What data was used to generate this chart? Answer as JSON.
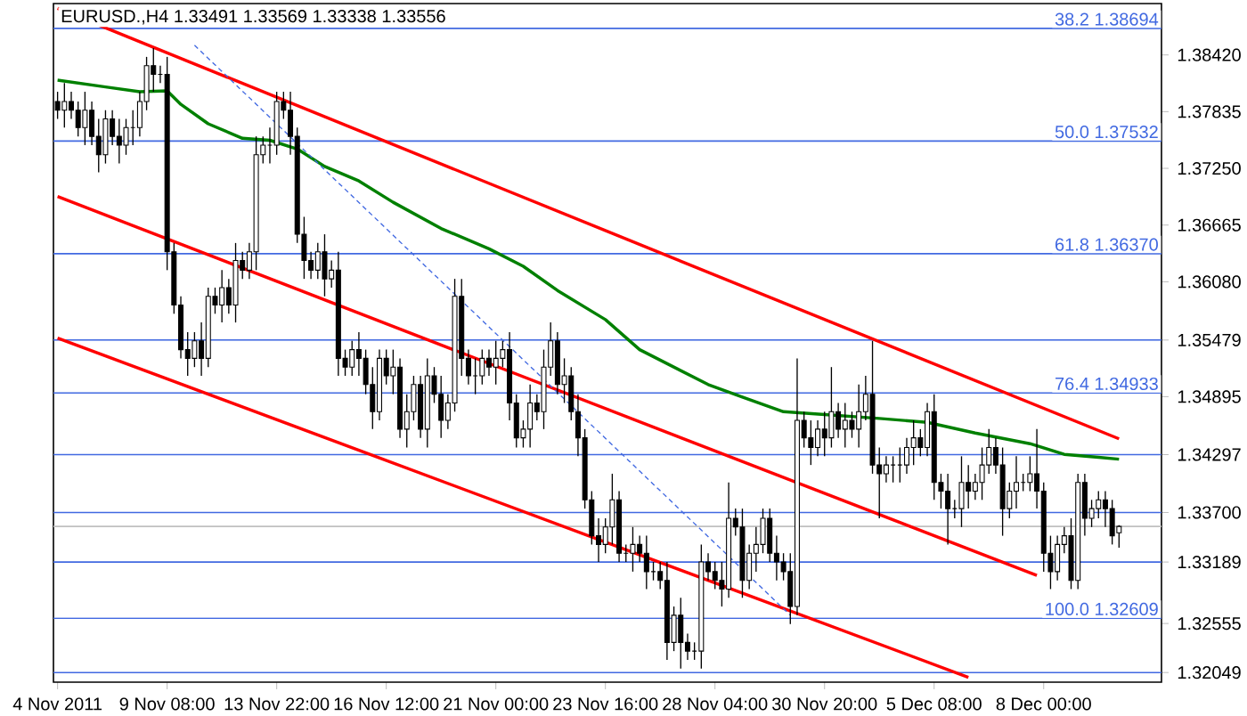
{
  "chart_data": {
    "type": "candlestick",
    "title": "EURUSD.,H4 1.33491 1.33569 1.33338 1.33556",
    "categories": [
      "4 Nov 2011",
      null,
      null,
      null,
      null,
      null,
      null,
      null,
      null,
      null,
      null,
      null,
      null,
      null,
      null,
      null,
      "9 Nov 08:00",
      null,
      null,
      null,
      null,
      null,
      null,
      null,
      null,
      null,
      null,
      null,
      null,
      null,
      null,
      null,
      "13 Nov 22:00",
      null,
      null,
      null,
      null,
      null,
      null,
      null,
      null,
      null,
      null,
      null,
      null,
      null,
      null,
      null,
      "16 Nov 12:00",
      null,
      null,
      null,
      null,
      null,
      null,
      null,
      null,
      null,
      null,
      null,
      null,
      null,
      null,
      null,
      "21 Nov 00:00",
      null,
      null,
      null,
      null,
      null,
      null,
      null,
      null,
      null,
      null,
      null,
      null,
      null,
      null,
      null,
      "23 Nov 16:00",
      null,
      null,
      null,
      null,
      null,
      null,
      null,
      null,
      null,
      null,
      null,
      null,
      null,
      null,
      null,
      "28 Nov 04:00",
      null,
      null,
      null,
      null,
      null,
      null,
      null,
      null,
      null,
      null,
      null,
      null,
      null,
      null,
      null,
      "30 Nov 20:00",
      null,
      null,
      null,
      null,
      null,
      null,
      null,
      null,
      null,
      null,
      null,
      null,
      null,
      null,
      null,
      "5 Dec 08:00",
      null,
      null,
      null,
      null,
      null,
      null,
      null,
      null,
      null,
      null,
      null,
      null,
      null,
      null,
      null,
      "8 Dec 00:00",
      null,
      null,
      null,
      null,
      null,
      null,
      null,
      null,
      null,
      null,
      null
    ],
    "ohlc": [
      [
        1.3794,
        1.3804,
        1.3776,
        1.3785
      ],
      [
        1.3785,
        1.3813,
        1.3767,
        1.3794
      ],
      [
        1.3794,
        1.3804,
        1.3776,
        1.3785
      ],
      [
        1.3785,
        1.3794,
        1.3758,
        1.3767
      ],
      [
        1.3767,
        1.3804,
        1.3749,
        1.3785
      ],
      [
        1.3785,
        1.3794,
        1.3749,
        1.3758
      ],
      [
        1.3758,
        1.3776,
        1.3721,
        1.3739
      ],
      [
        1.3739,
        1.3785,
        1.373,
        1.3776
      ],
      [
        1.3776,
        1.3785,
        1.3749,
        1.3758
      ],
      [
        1.3758,
        1.3776,
        1.373,
        1.3749
      ],
      [
        1.3749,
        1.3776,
        1.3739,
        1.3767
      ],
      [
        1.3767,
        1.3785,
        1.3749,
        1.3767
      ],
      [
        1.3767,
        1.3804,
        1.3758,
        1.3794
      ],
      [
        1.3794,
        1.384,
        1.3785,
        1.3831
      ],
      [
        1.3831,
        1.3849,
        1.3804,
        1.3822
      ],
      [
        1.3822,
        1.3831,
        1.3813,
        1.3822
      ],
      [
        1.3822,
        1.384,
        1.362,
        1.3639
      ],
      [
        1.3639,
        1.3648,
        1.3575,
        1.3584
      ],
      [
        1.3584,
        1.3593,
        1.3529,
        1.3538
      ],
      [
        1.3538,
        1.3556,
        1.3511,
        1.3529
      ],
      [
        1.3529,
        1.3556,
        1.352,
        1.3547
      ],
      [
        1.3547,
        1.3566,
        1.3511,
        1.3529
      ],
      [
        1.3529,
        1.3602,
        1.352,
        1.3593
      ],
      [
        1.3593,
        1.3602,
        1.3575,
        1.3584
      ],
      [
        1.3584,
        1.362,
        1.3566,
        1.3602
      ],
      [
        1.3602,
        1.3611,
        1.3575,
        1.3584
      ],
      [
        1.3584,
        1.3648,
        1.3566,
        1.363
      ],
      [
        1.363,
        1.3639,
        1.3611,
        1.362
      ],
      [
        1.362,
        1.3648,
        1.3611,
        1.3639
      ],
      [
        1.3639,
        1.3758,
        1.362,
        1.3739
      ],
      [
        1.3739,
        1.3758,
        1.373,
        1.3749
      ],
      [
        1.3749,
        1.3767,
        1.373,
        1.3749
      ],
      [
        1.3749,
        1.3804,
        1.3739,
        1.3794
      ],
      [
        1.3794,
        1.3804,
        1.3776,
        1.3785
      ],
      [
        1.3785,
        1.3804,
        1.3739,
        1.3758
      ],
      [
        1.3758,
        1.3767,
        1.3648,
        1.3657
      ],
      [
        1.3657,
        1.3675,
        1.3611,
        1.363
      ],
      [
        1.363,
        1.3639,
        1.3611,
        1.362
      ],
      [
        1.362,
        1.3648,
        1.3611,
        1.3639
      ],
      [
        1.3639,
        1.3657,
        1.3593,
        1.3611
      ],
      [
        1.3611,
        1.363,
        1.3602,
        1.362
      ],
      [
        1.362,
        1.3639,
        1.3511,
        1.3529
      ],
      [
        1.3529,
        1.3538,
        1.3511,
        1.352
      ],
      [
        1.352,
        1.3547,
        1.3511,
        1.3538
      ],
      [
        1.3538,
        1.3556,
        1.3511,
        1.3529
      ],
      [
        1.3529,
        1.3538,
        1.3492,
        1.3502
      ],
      [
        1.3502,
        1.352,
        1.3456,
        1.3474
      ],
      [
        1.3474,
        1.3538,
        1.3465,
        1.3529
      ],
      [
        1.3529,
        1.3538,
        1.3502,
        1.3511
      ],
      [
        1.3511,
        1.3538,
        1.3492,
        1.352
      ],
      [
        1.352,
        1.3529,
        1.3447,
        1.3456
      ],
      [
        1.3456,
        1.3492,
        1.3437,
        1.3474
      ],
      [
        1.3474,
        1.3511,
        1.3465,
        1.3502
      ],
      [
        1.3502,
        1.3511,
        1.3447,
        1.3456
      ],
      [
        1.3456,
        1.3529,
        1.3437,
        1.3511
      ],
      [
        1.3511,
        1.352,
        1.3483,
        1.3492
      ],
      [
        1.3492,
        1.3511,
        1.3447,
        1.3465
      ],
      [
        1.3465,
        1.3492,
        1.3456,
        1.3483
      ],
      [
        1.3483,
        1.3611,
        1.3474,
        1.3593
      ],
      [
        1.3593,
        1.3611,
        1.3511,
        1.3529
      ],
      [
        1.3529,
        1.3538,
        1.3502,
        1.3511
      ],
      [
        1.3511,
        1.3529,
        1.3492,
        1.3511
      ],
      [
        1.3511,
        1.3538,
        1.3502,
        1.3529
      ],
      [
        1.3529,
        1.3538,
        1.3511,
        1.352
      ],
      [
        1.352,
        1.3547,
        1.3502,
        1.3529
      ],
      [
        1.3529,
        1.3547,
        1.352,
        1.3538
      ],
      [
        1.3538,
        1.3556,
        1.3465,
        1.3483
      ],
      [
        1.3483,
        1.3492,
        1.3437,
        1.3447
      ],
      [
        1.3447,
        1.3465,
        1.3437,
        1.3456
      ],
      [
        1.3456,
        1.3502,
        1.3437,
        1.3483
      ],
      [
        1.3483,
        1.3492,
        1.3465,
        1.3474
      ],
      [
        1.3474,
        1.3538,
        1.3456,
        1.352
      ],
      [
        1.352,
        1.3566,
        1.3511,
        1.3547
      ],
      [
        1.3547,
        1.3556,
        1.3492,
        1.3502
      ],
      [
        1.3502,
        1.3529,
        1.3483,
        1.3511
      ],
      [
        1.3511,
        1.352,
        1.3465,
        1.3474
      ],
      [
        1.3474,
        1.3492,
        1.3428,
        1.3447
      ],
      [
        1.3447,
        1.3456,
        1.3374,
        1.3383
      ],
      [
        1.3383,
        1.3392,
        1.3337,
        1.3346
      ],
      [
        1.3346,
        1.3364,
        1.3319,
        1.3337
      ],
      [
        1.3337,
        1.3364,
        1.3328,
        1.3355
      ],
      [
        1.3355,
        1.341,
        1.3337,
        1.3383
      ],
      [
        1.3383,
        1.3392,
        1.3319,
        1.3328
      ],
      [
        1.3328,
        1.3337,
        1.3319,
        1.3328
      ],
      [
        1.3328,
        1.3355,
        1.3309,
        1.3337
      ],
      [
        1.3337,
        1.3346,
        1.3319,
        1.3328
      ],
      [
        1.3328,
        1.3346,
        1.3291,
        1.3309
      ],
      [
        1.3309,
        1.3319,
        1.33,
        1.3309
      ],
      [
        1.3309,
        1.3319,
        1.3291,
        1.33
      ],
      [
        1.33,
        1.3319,
        1.3218,
        1.3236
      ],
      [
        1.3236,
        1.3273,
        1.3227,
        1.3264
      ],
      [
        1.3264,
        1.3282,
        1.3209,
        1.3236
      ],
      [
        1.3236,
        1.3245,
        1.3218,
        1.3227
      ],
      [
        1.3227,
        1.3236,
        1.3218,
        1.3227
      ],
      [
        1.3227,
        1.3337,
        1.3209,
        1.3319
      ],
      [
        1.3319,
        1.3328,
        1.33,
        1.3309
      ],
      [
        1.3309,
        1.3319,
        1.3291,
        1.33
      ],
      [
        1.33,
        1.3319,
        1.3273,
        1.3291
      ],
      [
        1.3291,
        1.3401,
        1.3282,
        1.3364
      ],
      [
        1.3364,
        1.3374,
        1.3346,
        1.3355
      ],
      [
        1.3355,
        1.3374,
        1.3282,
        1.33
      ],
      [
        1.33,
        1.3337,
        1.3291,
        1.3328
      ],
      [
        1.3328,
        1.3355,
        1.3309,
        1.3337
      ],
      [
        1.3337,
        1.3374,
        1.3328,
        1.3364
      ],
      [
        1.3364,
        1.3374,
        1.3319,
        1.3328
      ],
      [
        1.3328,
        1.3346,
        1.33,
        1.3319
      ],
      [
        1.3319,
        1.3328,
        1.33,
        1.3309
      ],
      [
        1.3309,
        1.3328,
        1.3255,
        1.3273
      ],
      [
        1.3273,
        1.3529,
        1.3264,
        1.3465
      ],
      [
        1.3465,
        1.3474,
        1.3437,
        1.3447
      ],
      [
        1.3447,
        1.3465,
        1.3419,
        1.3437
      ],
      [
        1.3437,
        1.3465,
        1.3428,
        1.3456
      ],
      [
        1.3456,
        1.3474,
        1.3428,
        1.3447
      ],
      [
        1.3447,
        1.352,
        1.3437,
        1.3474
      ],
      [
        1.3474,
        1.3483,
        1.3447,
        1.3456
      ],
      [
        1.3456,
        1.3483,
        1.3437,
        1.3465
      ],
      [
        1.3465,
        1.3474,
        1.3447,
        1.3456
      ],
      [
        1.3456,
        1.3502,
        1.3437,
        1.3474
      ],
      [
        1.3474,
        1.3511,
        1.3465,
        1.3492
      ],
      [
        1.3492,
        1.3547,
        1.341,
        1.3419
      ],
      [
        1.3419,
        1.3437,
        1.3364,
        1.341
      ],
      [
        1.341,
        1.3428,
        1.3401,
        1.3419
      ],
      [
        1.3419,
        1.3428,
        1.3401,
        1.3419
      ],
      [
        1.3419,
        1.3437,
        1.3401,
        1.3419
      ],
      [
        1.3419,
        1.3447,
        1.341,
        1.3437
      ],
      [
        1.3437,
        1.3465,
        1.3419,
        1.3447
      ],
      [
        1.3447,
        1.3456,
        1.3428,
        1.3437
      ],
      [
        1.3437,
        1.3483,
        1.3428,
        1.3474
      ],
      [
        1.3474,
        1.3492,
        1.3383,
        1.3401
      ],
      [
        1.3401,
        1.341,
        1.3374,
        1.3392
      ],
      [
        1.3392,
        1.341,
        1.3337,
        1.3374
      ],
      [
        1.3374,
        1.3383,
        1.3364,
        1.3374
      ],
      [
        1.3374,
        1.3428,
        1.3355,
        1.3401
      ],
      [
        1.3401,
        1.3419,
        1.3374,
        1.3392
      ],
      [
        1.3392,
        1.341,
        1.3383,
        1.3401
      ],
      [
        1.3401,
        1.3437,
        1.3383,
        1.3419
      ],
      [
        1.3419,
        1.3456,
        1.341,
        1.3437
      ],
      [
        1.3437,
        1.3447,
        1.341,
        1.3419
      ],
      [
        1.3419,
        1.3437,
        1.3346,
        1.3374
      ],
      [
        1.3374,
        1.3401,
        1.3364,
        1.3392
      ],
      [
        1.3392,
        1.3428,
        1.3374,
        1.3401
      ],
      [
        1.3401,
        1.341,
        1.3392,
        1.3401
      ],
      [
        1.3401,
        1.3428,
        1.3392,
        1.341
      ],
      [
        1.341,
        1.3456,
        1.3374,
        1.3392
      ],
      [
        1.3392,
        1.3401,
        1.3309,
        1.3328
      ],
      [
        1.3328,
        1.3346,
        1.3291,
        1.3309
      ],
      [
        1.3309,
        1.3346,
        1.33,
        1.3337
      ],
      [
        1.3337,
        1.3355,
        1.3328,
        1.3346
      ],
      [
        1.3346,
        1.3364,
        1.3291,
        1.33
      ],
      [
        1.33,
        1.341,
        1.3291,
        1.3401
      ],
      [
        1.3401,
        1.341,
        1.3346,
        1.3364
      ],
      [
        1.3364,
        1.3383,
        1.3355,
        1.3374
      ],
      [
        1.3374,
        1.3392,
        1.3364,
        1.3383
      ],
      [
        1.3383,
        1.3392,
        1.3355,
        1.3374
      ],
      [
        1.3374,
        1.3383,
        1.3337,
        1.3346
      ],
      [
        1.33491,
        1.33569,
        1.33338,
        1.33556
      ]
    ],
    "series": [
      {
        "type": "line",
        "color": "#008000",
        "values": [
          1.3816,
          null,
          null,
          null,
          null,
          null,
          null,
          1.3809,
          null,
          null,
          null,
          null,
          1.3804,
          null,
          null,
          null,
          1.3805,
          null,
          1.3791,
          null,
          null,
          null,
          1.3771,
          null,
          null,
          null,
          null,
          1.3756,
          null,
          null,
          null,
          1.3754,
          null,
          null,
          null,
          1.3745,
          null,
          null,
          null,
          1.3727,
          null,
          null,
          null,
          null,
          1.3712,
          null,
          null,
          null,
          null,
          1.369,
          null,
          null,
          null,
          null,
          null,
          null,
          1.3663,
          null,
          null,
          null,
          null,
          null,
          null,
          1.3642,
          null,
          null,
          null,
          null,
          1.3624,
          null,
          null,
          null,
          null,
          1.3599,
          null,
          null,
          null,
          null,
          null,
          null,
          1.3569,
          null,
          null,
          null,
          null,
          1.3538,
          null,
          null,
          null,
          null,
          1.352,
          null,
          null,
          null,
          null,
          1.3502,
          null,
          null,
          null,
          null,
          1.3489,
          null,
          null,
          null,
          null,
          null,
          1.3474,
          null,
          null,
          null,
          null,
          null,
          1.3471,
          null,
          null,
          null,
          null,
          null,
          null,
          null,
          1.3467,
          null,
          null,
          null,
          null,
          null,
          null,
          1.3463,
          null,
          null,
          null,
          null,
          null,
          null,
          1.3452,
          null,
          null,
          null,
          null,
          null,
          null,
          null,
          1.3441,
          null,
          null,
          null,
          null,
          1.343,
          null,
          null,
          null,
          null,
          1.3427,
          null,
          null,
          1.3425
        ]
      },
      {
        "type": "line",
        "color": "#ff0000",
        "values": [
          1.389,
          null,
          null,
          null,
          null,
          null,
          null,
          null,
          null,
          null,
          null,
          null,
          null,
          null,
          null,
          null,
          null,
          null,
          null,
          null,
          null,
          null,
          null,
          null,
          null,
          null,
          null,
          null,
          null,
          null,
          null,
          null,
          null,
          null,
          null,
          null,
          null,
          null,
          null,
          null,
          null,
          null,
          null,
          null,
          null,
          null,
          null,
          null,
          null,
          null,
          null,
          null,
          null,
          null,
          null,
          null,
          null,
          null,
          null,
          null,
          null,
          null,
          null,
          null,
          null,
          null,
          null,
          null,
          null,
          null,
          null,
          null,
          null,
          null,
          null,
          null,
          null,
          null,
          null,
          null,
          null,
          null,
          null,
          null,
          null,
          null,
          null,
          null,
          null,
          null,
          null,
          null,
          null,
          null,
          null,
          null,
          null,
          null,
          null,
          null,
          null,
          null,
          null,
          null,
          null,
          null,
          null,
          null,
          null,
          null,
          null,
          null,
          null,
          null,
          null,
          null,
          null,
          null,
          null,
          null,
          null,
          null,
          null,
          null,
          null,
          null,
          null,
          null,
          null,
          null,
          null,
          null,
          null,
          null,
          null,
          null,
          null,
          null,
          null,
          null,
          null,
          null,
          null,
          null,
          null,
          null,
          null,
          null,
          null,
          null,
          null,
          null,
          null,
          null,
          null,
          1.3446
        ]
      },
      {
        "type": "line",
        "color": "#ff0000",
        "values": [
          1.3696,
          null,
          null,
          null,
          null,
          null,
          null,
          null,
          null,
          null,
          null,
          null,
          null,
          null,
          null,
          null,
          null,
          null,
          null,
          null,
          null,
          null,
          null,
          null,
          null,
          null,
          null,
          null,
          null,
          null,
          null,
          null,
          null,
          null,
          null,
          null,
          null,
          null,
          null,
          null,
          null,
          null,
          null,
          null,
          null,
          null,
          null,
          null,
          null,
          null,
          null,
          null,
          null,
          null,
          null,
          null,
          null,
          null,
          null,
          null,
          null,
          null,
          null,
          null,
          null,
          null,
          null,
          null,
          null,
          null,
          null,
          null,
          null,
          null,
          null,
          null,
          null,
          null,
          null,
          null,
          null,
          null,
          null,
          null,
          null,
          null,
          null,
          null,
          null,
          null,
          null,
          null,
          null,
          null,
          null,
          null,
          null,
          null,
          null,
          null,
          null,
          null,
          null,
          null,
          null,
          null,
          null,
          null,
          null,
          null,
          null,
          null,
          null,
          null,
          null,
          null,
          null,
          null,
          null,
          null,
          null,
          null,
          null,
          null,
          null,
          null,
          null,
          null,
          null,
          null,
          null,
          null,
          null,
          null,
          null,
          null,
          null,
          null,
          null,
          null,
          null,
          null,
          null,
          1.3305,
          null,
          null,
          null,
          null,
          null,
          null,
          null,
          null,
          null,
          null,
          null,
          null
        ]
      },
      {
        "type": "line",
        "color": "#ff0000",
        "values": [
          1.355,
          null,
          null,
          null,
          null,
          null,
          null,
          null,
          null,
          null,
          null,
          null,
          null,
          null,
          null,
          null,
          null,
          null,
          null,
          null,
          null,
          null,
          null,
          null,
          null,
          null,
          null,
          null,
          null,
          null,
          null,
          null,
          null,
          null,
          null,
          null,
          null,
          null,
          null,
          null,
          null,
          null,
          null,
          null,
          null,
          null,
          null,
          null,
          null,
          null,
          null,
          null,
          null,
          null,
          null,
          null,
          null,
          null,
          null,
          null,
          null,
          null,
          null,
          null,
          null,
          null,
          null,
          null,
          null,
          null,
          null,
          null,
          null,
          null,
          null,
          null,
          null,
          null,
          null,
          null,
          null,
          null,
          null,
          null,
          null,
          null,
          null,
          null,
          null,
          null,
          null,
          null,
          null,
          null,
          null,
          null,
          null,
          null,
          null,
          null,
          null,
          null,
          null,
          null,
          null,
          null,
          null,
          null,
          null,
          null,
          null,
          null,
          null,
          null,
          null,
          null,
          null,
          null,
          null,
          null,
          null,
          null,
          null,
          null,
          null,
          null,
          null,
          null,
          null,
          null,
          null,
          null,
          null,
          1.32,
          null,
          null,
          null,
          null,
          null,
          null,
          null,
          null,
          null,
          null,
          null,
          null,
          null,
          null,
          null,
          null,
          null,
          null,
          null,
          null,
          null,
          null
        ]
      },
      {
        "type": "line",
        "color": "#4169e1",
        "line_style": "dashed",
        "values": [
          null,
          null,
          null,
          null,
          null,
          null,
          null,
          null,
          null,
          null,
          null,
          null,
          null,
          null,
          null,
          null,
          null,
          null,
          null,
          null,
          1.3852,
          null,
          null,
          null,
          null,
          null,
          null,
          null,
          null,
          null,
          null,
          null,
          null,
          null,
          null,
          null,
          null,
          null,
          null,
          null,
          null,
          null,
          null,
          null,
          null,
          null,
          null,
          null,
          null,
          null,
          null,
          null,
          null,
          null,
          null,
          null,
          null,
          null,
          null,
          null,
          null,
          null,
          null,
          null,
          null,
          null,
          null,
          null,
          null,
          null,
          null,
          null,
          null,
          null,
          null,
          null,
          null,
          null,
          null,
          null,
          null,
          null,
          null,
          null,
          null,
          null,
          null,
          null,
          null,
          null,
          null,
          null,
          null,
          null,
          null,
          null,
          null,
          null,
          null,
          null,
          null,
          null,
          null,
          null,
          null,
          null,
          null,
          1.3264,
          null,
          null,
          null,
          null,
          null,
          null,
          null,
          null,
          null,
          null,
          null,
          null,
          null,
          null,
          null,
          null,
          null,
          null,
          null,
          null,
          null,
          null,
          null,
          null,
          null,
          null,
          null,
          null,
          null,
          null,
          null,
          null,
          null,
          null,
          null,
          null,
          null,
          null,
          null,
          null,
          null,
          null,
          null,
          null,
          null,
          null,
          null,
          null
        ]
      }
    ],
    "ylim": [
      1.3195,
      1.3895
    ],
    "yticks": [
      {
        "value": 1.3842,
        "label": "1.38420"
      },
      {
        "value": 1.37835,
        "label": "1.37835"
      },
      {
        "value": 1.3725,
        "label": "1.37250"
      },
      {
        "value": 1.36665,
        "label": "1.36665"
      },
      {
        "value": 1.3608,
        "label": "1.36080"
      },
      {
        "value": 1.35479,
        "label": "1.35479"
      },
      {
        "value": 1.34895,
        "label": "1.34895"
      },
      {
        "value": 1.34297,
        "label": "1.34297"
      },
      {
        "value": 1.337,
        "label": "1.33700"
      },
      {
        "value": 1.33189,
        "label": "1.33189"
      },
      {
        "value": 1.32555,
        "label": "1.32555"
      },
      {
        "value": 1.32049,
        "label": "1.32049"
      }
    ],
    "ref_lines": [
      {
        "axis": "y",
        "value": 1.38694,
        "label": "38.2 1.38694",
        "color": "#4169e1"
      },
      {
        "axis": "y",
        "value": 1.37532,
        "label": "50.0 1.37532",
        "color": "#4169e1"
      },
      {
        "axis": "y",
        "value": 1.3637,
        "label": "61.8 1.36370",
        "color": "#4169e1"
      },
      {
        "axis": "y",
        "value": 1.35479,
        "color": "#4169e1"
      },
      {
        "axis": "y",
        "value": 1.34933,
        "label": "76.4 1.34933",
        "color": "#4169e1"
      },
      {
        "axis": "y",
        "value": 1.34297,
        "color": "#4169e1"
      },
      {
        "axis": "y",
        "value": 1.337,
        "color": "#4169e1"
      },
      {
        "axis": "y",
        "value": 1.33556,
        "color": "#c0c0c0"
      },
      {
        "axis": "y",
        "value": 1.33189,
        "color": "#4169e1"
      },
      {
        "axis": "y",
        "value": 1.32609,
        "label": "100.0 1.32609",
        "color": "#4169e1"
      },
      {
        "axis": "y",
        "value": 1.32049,
        "color": "#4169e1"
      }
    ]
  }
}
